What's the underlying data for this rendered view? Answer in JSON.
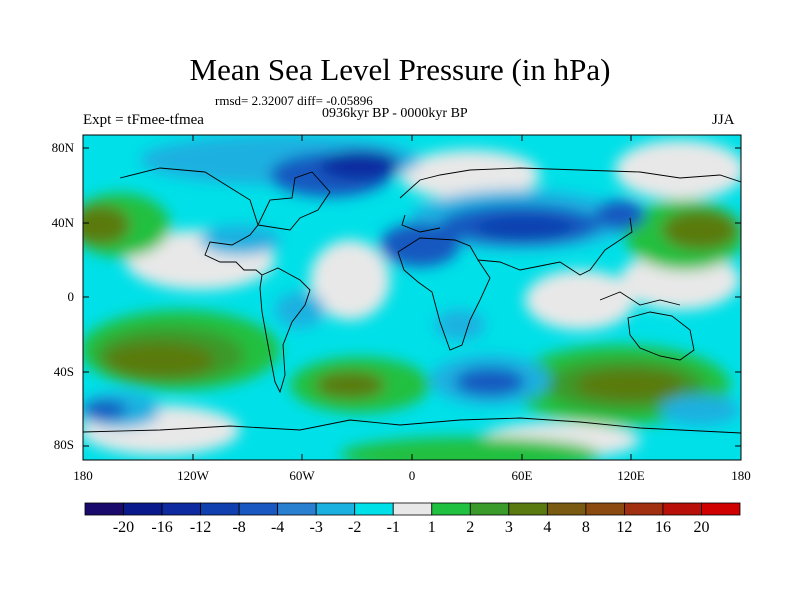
{
  "title": "Mean Sea Level Pressure (in hPa)",
  "stats": "rmsd= 2.32007 diff= -0.05896",
  "period": "0936kyr BP - 0000kyr BP",
  "experiment": "Expt = tFmee-tfmea",
  "season": "JJA",
  "lat_labels": [
    "80N",
    "40N",
    "0",
    "40S",
    "80S"
  ],
  "lon_labels": [
    "180",
    "120W",
    "60W",
    "0",
    "60E",
    "120E",
    "180"
  ],
  "colorbar": {
    "labels": [
      "-20",
      "-16",
      "-12",
      "-8",
      "-4",
      "-3",
      "-2",
      "-1",
      "1",
      "2",
      "3",
      "4",
      "8",
      "12",
      "16",
      "20"
    ],
    "colors": [
      "#1a0a6b",
      "#0a1a8c",
      "#0d2aa0",
      "#1040b0",
      "#1858c0",
      "#2a80d0",
      "#1ab0e0",
      "#00e0e8",
      "#e8e8e8",
      "#20c040",
      "#3a9a2a",
      "#5a7a10",
      "#7a5a10",
      "#8a4a10",
      "#a03010",
      "#b81008",
      "#d00000"
    ]
  },
  "colors": {
    "land_outline": "#000000",
    "neutral": "#e8e8e8"
  }
}
